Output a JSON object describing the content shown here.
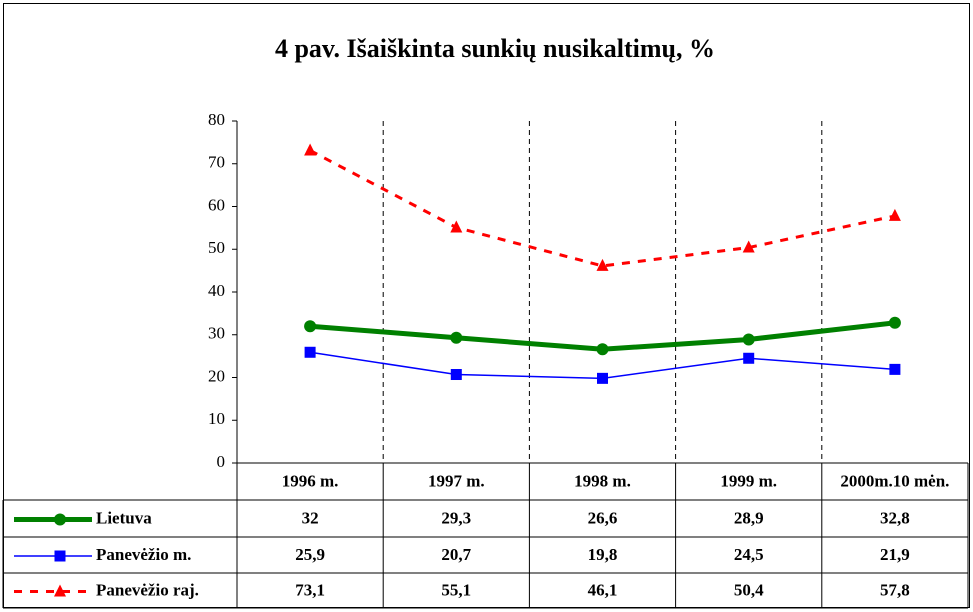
{
  "chart_data": {
    "type": "line",
    "title": "4 pav. Išaiškinta sunkių nusikaltimų, %",
    "categories": [
      "1996 m.",
      "1997 m.",
      "1998 m.",
      "1999 m.",
      "2000m.10 mėn."
    ],
    "series": [
      {
        "name": "Lietuva",
        "color": "#008000",
        "values": [
          32,
          29.3,
          26.6,
          28.9,
          32.8
        ],
        "value_labels": [
          "32",
          "29,3",
          "26,6",
          "28,9",
          "32,8"
        ]
      },
      {
        "name": "Panevėžio m.",
        "color": "#0000ff",
        "values": [
          25.9,
          20.7,
          19.8,
          24.5,
          21.9
        ],
        "value_labels": [
          "25,9",
          "20,7",
          "19,8",
          "24,5",
          "21,9"
        ]
      },
      {
        "name": "Panevėžio raj.",
        "color": "#ff0000",
        "values": [
          73.1,
          55.1,
          46.1,
          50.4,
          57.8
        ],
        "value_labels": [
          "73,1",
          "55,1",
          "46,1",
          "50,4",
          "57,8"
        ]
      }
    ],
    "ylim": [
      0,
      80
    ],
    "yticks": [
      0,
      10,
      20,
      30,
      40,
      50,
      60,
      70,
      80
    ]
  }
}
